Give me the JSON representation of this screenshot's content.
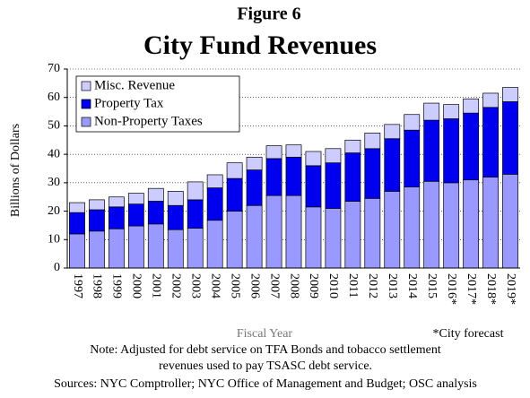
{
  "chart_data": {
    "type": "stacked_bar",
    "figure_label": "Figure 6",
    "title": "City Fund Revenues",
    "ylabel": "Billions of Dollars",
    "xlabel": "Fiscal Year",
    "annotation": "*City forecast",
    "notes": [
      "Note: Adjusted for debt service on TFA Bonds and tobacco settlement",
      "revenues used to pay TSASC debt service.",
      "Sources: NYC Comptroller; NYC Office of Management and Budget; OSC analysis"
    ],
    "categories": [
      "1997",
      "1998",
      "1999",
      "2000",
      "2001",
      "2002",
      "2003",
      "2004",
      "2005",
      "2006",
      "2007",
      "2008",
      "2009",
      "2010",
      "2011",
      "2012",
      "2013",
      "2014",
      "2015",
      "2016*",
      "2017*",
      "2018*",
      "2019*"
    ],
    "series": [
      {
        "name": "Misc. Revenue",
        "color": "#ccccff",
        "values": [
          3.5,
          3.5,
          3.5,
          3.8,
          4.5,
          5,
          6.3,
          4.6,
          5.5,
          4.5,
          4.5,
          4.3,
          5,
          5,
          4.5,
          5.5,
          5,
          5.5,
          6,
          5,
          5,
          5,
          5
        ]
      },
      {
        "name": "Property Tax",
        "color": "#0000ee",
        "values": [
          7.5,
          7.5,
          7.7,
          7.7,
          8,
          8.5,
          10,
          11.4,
          11.5,
          12.5,
          13,
          13.5,
          14.5,
          16,
          17,
          17.5,
          18.5,
          20,
          21.5,
          22.5,
          23.5,
          24.5,
          25.5
        ]
      },
      {
        "name": "Non-Property Taxes",
        "color": "#9999ff",
        "values": [
          12,
          13,
          13.8,
          14.8,
          15.5,
          13.5,
          14,
          16.8,
          20,
          22,
          25.5,
          25.5,
          21.5,
          21,
          23.5,
          24.5,
          27,
          28.5,
          30.5,
          30,
          31,
          32,
          33
        ]
      }
    ],
    "ylim": [
      0,
      70
    ],
    "yticks": [
      0,
      10,
      20,
      30,
      40,
      50,
      60,
      70
    ],
    "grid": true,
    "legend": "upper left"
  }
}
